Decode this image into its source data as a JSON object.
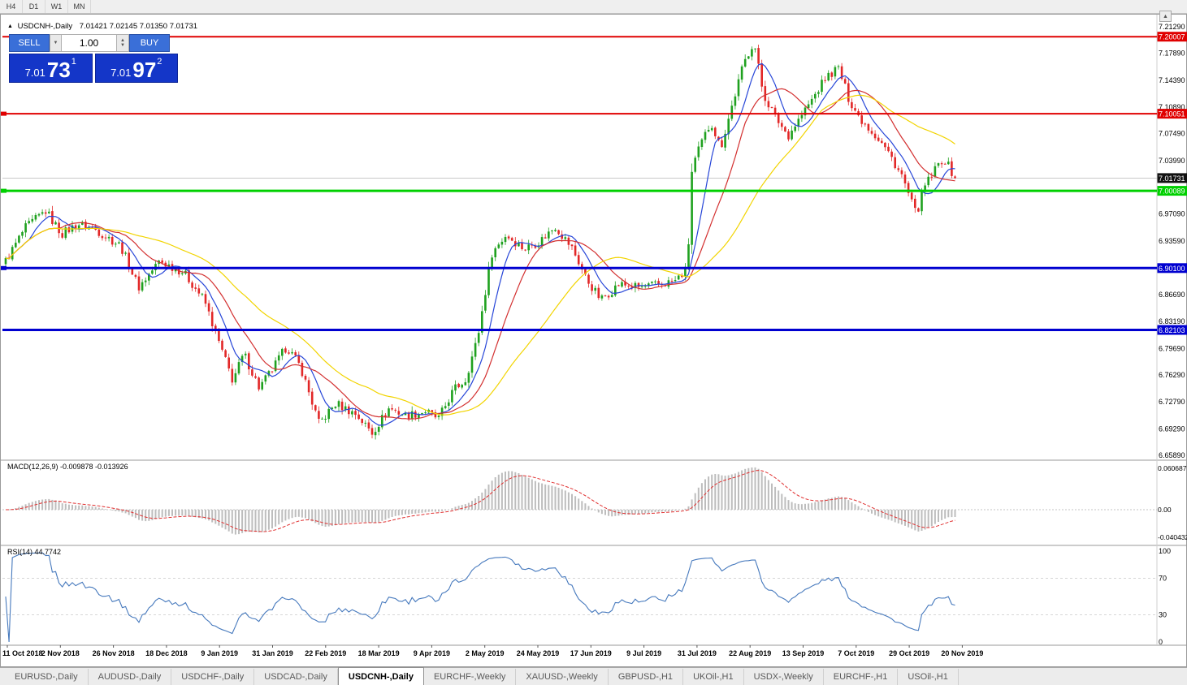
{
  "colors": {
    "up": "#1fa11f",
    "down": "#e22727",
    "ma_fast": "#2746d8",
    "ma_mid": "#d33030",
    "ma_slow": "#f2d400",
    "bid_line": "#b5b5b5",
    "macd_hist": "#bdbdbd",
    "macd_signal": "#e03030",
    "rsi_line": "#4679bd"
  },
  "toolbar": {
    "timeframes": [
      "H4",
      "D1",
      "W1",
      "MN"
    ]
  },
  "scrollbar": {
    "up_arrow": "▲"
  },
  "chart_header": {
    "collapse_icon": "▲",
    "symbol": "USDCNH-,Daily",
    "ohlc": "7.01421 7.02145 7.01350 7.01731"
  },
  "trade_panel": {
    "sell_label": "SELL",
    "buy_label": "BUY",
    "volume": "1.00",
    "sell_price_main": "7.01",
    "sell_price_big": "73",
    "sell_price_sup": "1",
    "buy_price_main": "7.01",
    "buy_price_big": "97",
    "buy_price_sup": "2"
  },
  "price_axis": {
    "labels": [
      {
        "text": "7.21290",
        "price": 7.2129
      },
      {
        "text": "7.17890",
        "price": 7.1789
      },
      {
        "text": "7.14390",
        "price": 7.1439
      },
      {
        "text": "7.10890",
        "price": 7.1089
      },
      {
        "text": "7.07490",
        "price": 7.0749
      },
      {
        "text": "7.03990",
        "price": 7.0399
      },
      {
        "text": "6.97090",
        "price": 6.9709
      },
      {
        "text": "6.93590",
        "price": 6.9359
      },
      {
        "text": "6.86690",
        "price": 6.8669
      },
      {
        "text": "6.83190",
        "price": 6.8319
      },
      {
        "text": "6.79690",
        "price": 6.7969
      },
      {
        "text": "6.76290",
        "price": 6.7629
      },
      {
        "text": "6.72790",
        "price": 6.7279
      },
      {
        "text": "6.69290",
        "price": 6.6929
      },
      {
        "text": "6.65890",
        "price": 6.6589
      }
    ],
    "tags": [
      {
        "text": "7.20007",
        "price": 7.20007,
        "bg": "#e00000",
        "fg": "#ffffff"
      },
      {
        "text": "7.10051",
        "price": 7.10051,
        "bg": "#e00000",
        "fg": "#ffffff"
      },
      {
        "text": "7.01731",
        "price": 7.01731,
        "bg": "#111111",
        "fg": "#ffffff"
      },
      {
        "text": "7.00089",
        "price": 7.00089,
        "bg": "#00d000",
        "fg": "#ffffff"
      },
      {
        "text": "6.90100",
        "price": 6.901,
        "bg": "#0000d0",
        "fg": "#ffffff"
      },
      {
        "text": "6.82103",
        "price": 6.82103,
        "bg": "#0000d0",
        "fg": "#ffffff"
      }
    ]
  },
  "indicators": {
    "macd": {
      "label": "MACD(12,26,9) -0.009878 -0.013926",
      "fast": 12,
      "slow": 26,
      "signal": 9,
      "value": -0.009878,
      "signal_value": -0.013926,
      "axis": [
        {
          "text": "0.060687",
          "v": 0.060687
        },
        {
          "text": "0.00",
          "v": 0
        },
        {
          "text": "-0.040432",
          "v": -0.040432
        }
      ]
    },
    "rsi": {
      "label": "RSI(14) 44.7742",
      "period": 14,
      "value": 44.7742,
      "axis": [
        {
          "text": "100",
          "v": 100
        },
        {
          "text": "70",
          "v": 70
        },
        {
          "text": "30",
          "v": 30
        },
        {
          "text": "0",
          "v": 0
        }
      ],
      "levels": [
        70,
        30
      ]
    }
  },
  "date_axis": [
    "11 Oct 2018",
    "2 Nov 2018",
    "26 Nov 2018",
    "18 Dec 2018",
    "9 Jan 2019",
    "31 Jan 2019",
    "22 Feb 2019",
    "18 Mar 2019",
    "9 Apr 2019",
    "2 May 2019",
    "24 May 2019",
    "17 Jun 2019",
    "9 Jul 2019",
    "31 Jul 2019",
    "22 Aug 2019",
    "13 Sep 2019",
    "7 Oct 2019",
    "29 Oct 2019",
    "20 Nov 2019"
  ],
  "tabs": {
    "active_index": 4,
    "items": [
      "EURUSD-,Daily",
      "AUDUSD-,Daily",
      "USDCHF-,Daily",
      "USDCAD-,Daily",
      "USDCNH-,Daily",
      "EURCHF-,Weekly",
      "XAUUSD-,Weekly",
      "GBPUSD-,H1",
      "UKOil-,H1",
      "USDX-,Weekly",
      "EURCHF-,H1",
      "USOil-,H1"
    ],
    "_": ""
  },
  "chart_data": {
    "type": "candlestick",
    "symbol": "USDCNH",
    "timeframe": "Daily",
    "current": {
      "open": 7.01421,
      "high": 7.02145,
      "low": 7.0135,
      "close": 7.01731
    },
    "price_range": {
      "min": 6.6589,
      "max": 7.2129
    },
    "bid_price": 7.01731,
    "horizontal_lines": [
      {
        "price": 7.20007,
        "color": "#e00000",
        "width": 2,
        "handle": false
      },
      {
        "price": 7.10051,
        "color": "#e00000",
        "width": 2,
        "handle": true
      },
      {
        "price": 7.00089,
        "color": "#00d000",
        "width": 3,
        "handle": true
      },
      {
        "price": 6.901,
        "color": "#0000d0",
        "width": 3,
        "handle": true
      },
      {
        "price": 6.82103,
        "color": "#0000d0",
        "width": 3,
        "handle": false
      }
    ],
    "num_candles": 286,
    "noise": 0.006,
    "moving_averages": [
      {
        "period": 8,
        "color_key": "ma_fast"
      },
      {
        "period": 17,
        "color_key": "ma_mid"
      },
      {
        "period": 40,
        "color_key": "ma_slow"
      }
    ],
    "price_path_anchors": [
      [
        0.0,
        6.91
      ],
      [
        0.02,
        6.952
      ],
      [
        0.042,
        6.975
      ],
      [
        0.059,
        6.945
      ],
      [
        0.076,
        6.958
      ],
      [
        0.093,
        6.952
      ],
      [
        0.121,
        6.93
      ],
      [
        0.14,
        6.876
      ],
      [
        0.162,
        6.91
      ],
      [
        0.187,
        6.896
      ],
      [
        0.209,
        6.86
      ],
      [
        0.226,
        6.8
      ],
      [
        0.239,
        6.756
      ],
      [
        0.251,
        6.79
      ],
      [
        0.267,
        6.746
      ],
      [
        0.281,
        6.77
      ],
      [
        0.296,
        6.8
      ],
      [
        0.311,
        6.772
      ],
      [
        0.33,
        6.7
      ],
      [
        0.348,
        6.726
      ],
      [
        0.369,
        6.712
      ],
      [
        0.386,
        6.688
      ],
      [
        0.404,
        6.72
      ],
      [
        0.422,
        6.71
      ],
      [
        0.442,
        6.716
      ],
      [
        0.456,
        6.706
      ],
      [
        0.472,
        6.744
      ],
      [
        0.484,
        6.756
      ],
      [
        0.497,
        6.81
      ],
      [
        0.512,
        6.92
      ],
      [
        0.527,
        6.944
      ],
      [
        0.546,
        6.926
      ],
      [
        0.563,
        6.936
      ],
      [
        0.579,
        6.955
      ],
      [
        0.597,
        6.926
      ],
      [
        0.612,
        6.886
      ],
      [
        0.627,
        6.86
      ],
      [
        0.646,
        6.88
      ],
      [
        0.668,
        6.876
      ],
      [
        0.689,
        6.88
      ],
      [
        0.705,
        6.884
      ],
      [
        0.718,
        6.9
      ],
      [
        0.723,
        7.03
      ],
      [
        0.732,
        7.06
      ],
      [
        0.743,
        7.09
      ],
      [
        0.753,
        7.056
      ],
      [
        0.764,
        7.106
      ],
      [
        0.777,
        7.164
      ],
      [
        0.788,
        7.195
      ],
      [
        0.798,
        7.126
      ],
      [
        0.811,
        7.096
      ],
      [
        0.824,
        7.072
      ],
      [
        0.837,
        7.096
      ],
      [
        0.85,
        7.12
      ],
      [
        0.863,
        7.146
      ],
      [
        0.877,
        7.16
      ],
      [
        0.888,
        7.12
      ],
      [
        0.899,
        7.096
      ],
      [
        0.911,
        7.08
      ],
      [
        0.922,
        7.064
      ],
      [
        0.933,
        7.044
      ],
      [
        0.944,
        7.02
      ],
      [
        0.954,
        6.986
      ],
      [
        0.959,
        6.97
      ],
      [
        0.968,
        7.006
      ],
      [
        0.978,
        7.026
      ],
      [
        0.988,
        7.044
      ],
      [
        0.995,
        7.028
      ],
      [
        1.0,
        7.017
      ]
    ]
  }
}
